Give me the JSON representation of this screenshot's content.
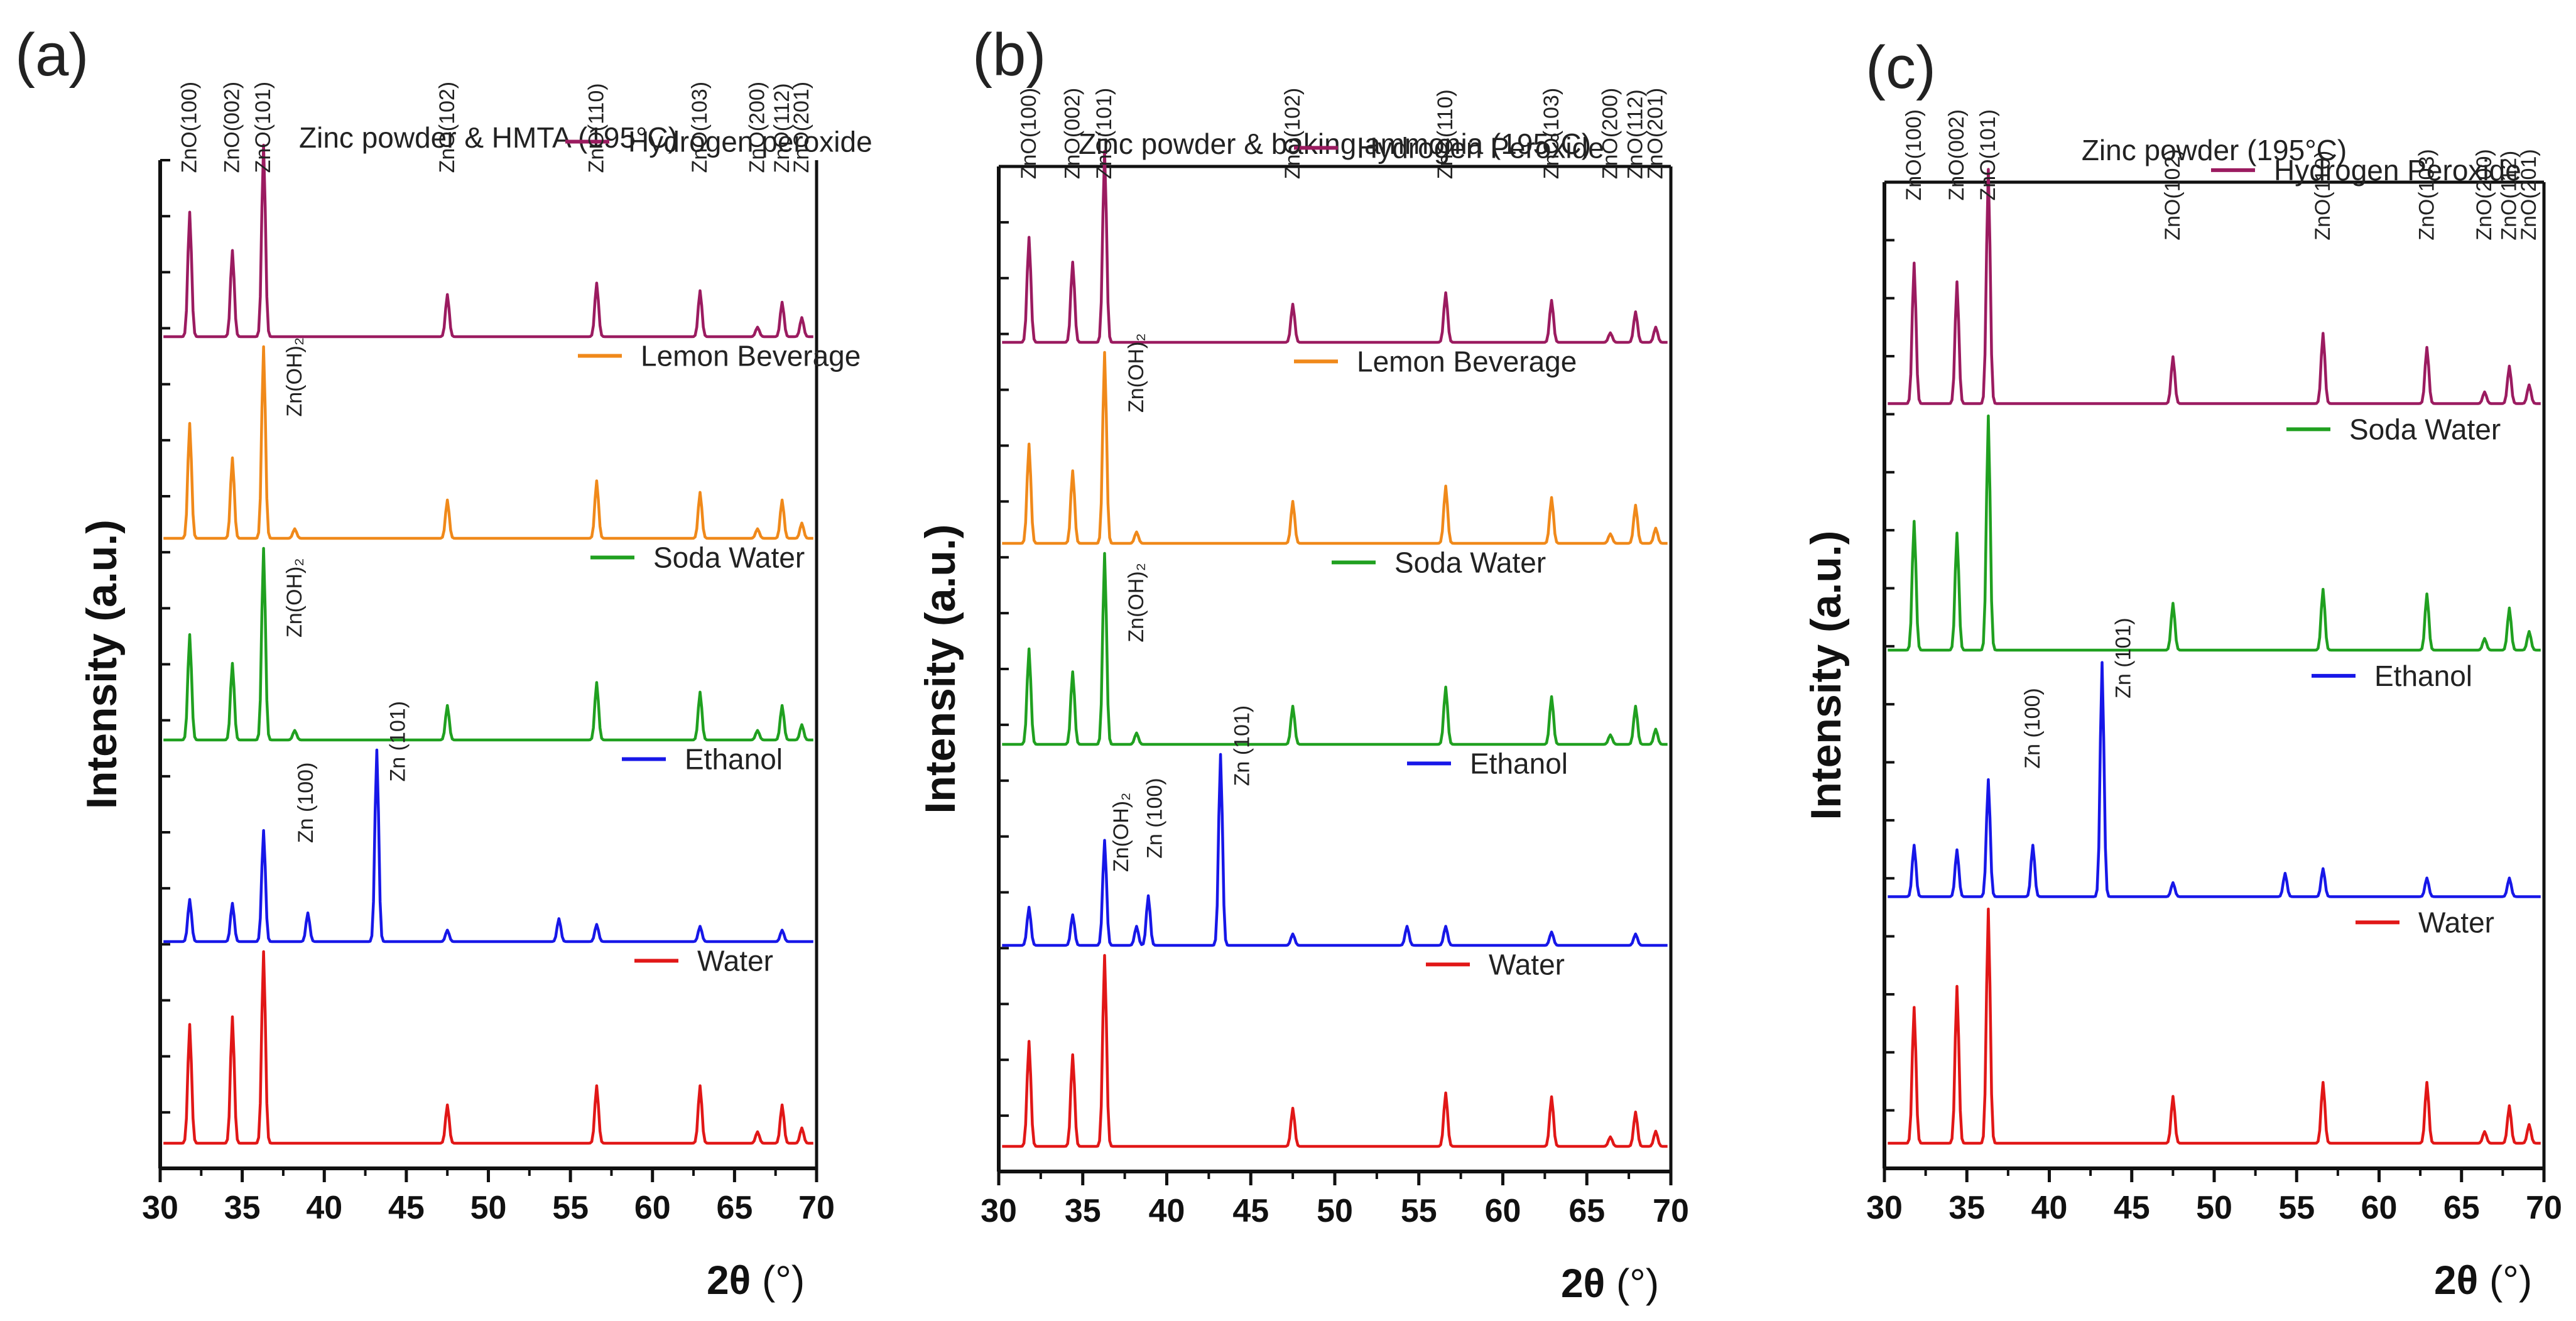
{
  "figure": {
    "theta_symbol": "2θ",
    "degree_suffix": " (°)"
  },
  "colors": {
    "hydrogen_peroxide": "#9b1b60",
    "lemon_beverage": "#f0891a",
    "soda_water": "#20a020",
    "ethanol": "#1717e8",
    "water": "#e11717"
  },
  "chart_data": [
    {
      "type": "line",
      "panel_label": "(a)",
      "title": "Zinc powder & HMTA (195°C)",
      "xlabel": "2θ (°)",
      "ylabel": "Intensity (a.u.)",
      "xlim": [
        30,
        70
      ],
      "xticks": [
        30,
        35,
        40,
        45,
        50,
        55,
        60,
        65,
        70
      ],
      "x_step_deg": 0.1,
      "series": [
        {
          "name": "Hydrogen peroxide",
          "color": "#9b1b60",
          "baseline": 4,
          "peaks": [
            [
              31.8,
              0.65
            ],
            [
              34.4,
              0.45
            ],
            [
              36.3,
              1.0
            ],
            [
              47.5,
              0.22
            ],
            [
              56.6,
              0.28
            ],
            [
              62.9,
              0.24
            ],
            [
              66.4,
              0.05
            ],
            [
              67.9,
              0.18
            ],
            [
              69.1,
              0.1
            ]
          ]
        },
        {
          "name": "Lemon Beverage",
          "color": "#f0891a",
          "baseline": 3,
          "peaks": [
            [
              31.8,
              0.6
            ],
            [
              34.4,
              0.42
            ],
            [
              36.3,
              1.0
            ],
            [
              38.2,
              0.05
            ],
            [
              47.5,
              0.2
            ],
            [
              56.6,
              0.3
            ],
            [
              62.9,
              0.24
            ],
            [
              66.4,
              0.05
            ],
            [
              67.9,
              0.2
            ],
            [
              69.1,
              0.08
            ]
          ]
        },
        {
          "name": "Soda Water",
          "color": "#20a020",
          "baseline": 2,
          "peaks": [
            [
              31.8,
              0.55
            ],
            [
              34.4,
              0.4
            ],
            [
              36.3,
              1.0
            ],
            [
              38.2,
              0.05
            ],
            [
              47.5,
              0.18
            ],
            [
              56.6,
              0.3
            ],
            [
              62.9,
              0.25
            ],
            [
              66.4,
              0.05
            ],
            [
              67.9,
              0.18
            ],
            [
              69.1,
              0.08
            ]
          ]
        },
        {
          "name": "Ethanol",
          "color": "#1717e8",
          "baseline": 1,
          "peaks": [
            [
              31.8,
              0.22
            ],
            [
              34.4,
              0.2
            ],
            [
              36.3,
              0.58
            ],
            [
              39.0,
              0.15
            ],
            [
              43.2,
              1.0
            ],
            [
              47.5,
              0.06
            ],
            [
              54.3,
              0.12
            ],
            [
              56.6,
              0.09
            ],
            [
              62.9,
              0.08
            ],
            [
              67.9,
              0.06
            ]
          ]
        },
        {
          "name": "Water",
          "color": "#e11717",
          "baseline": 0,
          "peaks": [
            [
              31.8,
              0.62
            ],
            [
              34.4,
              0.66
            ],
            [
              36.3,
              1.0
            ],
            [
              47.5,
              0.2
            ],
            [
              56.6,
              0.3
            ],
            [
              62.9,
              0.3
            ],
            [
              66.4,
              0.06
            ],
            [
              67.9,
              0.2
            ],
            [
              69.1,
              0.08
            ]
          ]
        }
      ],
      "annotations": [
        {
          "text": "ZnO(100)",
          "x": 31.9,
          "track": 4,
          "level": 0.92
        },
        {
          "text": "ZnO(002)",
          "x": 34.5,
          "track": 4,
          "level": 0.92
        },
        {
          "text": "ZnO(101)",
          "x": 36.4,
          "track": 4,
          "level": 0.92
        },
        {
          "text": "ZnO(102)",
          "x": 47.6,
          "track": 4,
          "level": 0.92
        },
        {
          "text": "ZnO(110)",
          "x": 56.7,
          "track": 4,
          "level": 0.92
        },
        {
          "text": "ZnO(103)",
          "x": 63.0,
          "track": 4,
          "level": 0.92
        },
        {
          "text": "ZnO(200)",
          "x": 66.5,
          "track": 4,
          "level": 0.92
        },
        {
          "text": "ZnO(112)",
          "x": 68.0,
          "track": 4,
          "level": 0.92
        },
        {
          "text": "ZnO(201)",
          "x": 69.2,
          "track": 4,
          "level": 0.92
        },
        {
          "text": "Zn(OH)₂",
          "x": 38.3,
          "track": 3,
          "level": 0.7
        },
        {
          "text": "Zn(OH)₂",
          "x": 38.3,
          "track": 2,
          "level": 0.6
        },
        {
          "text": "Zn (100)",
          "x": 39.0,
          "track": 1,
          "level": 0.58
        },
        {
          "text": "Zn (101)",
          "x": 44.6,
          "track": 1,
          "level": 0.9
        }
      ]
    },
    {
      "type": "line",
      "panel_label": "(b)",
      "title": "Zinc powder & baking ammonia (195°C)",
      "xlabel": "2θ (°)",
      "ylabel": "Intensity (a.u.)",
      "xlim": [
        30,
        70
      ],
      "xticks": [
        30,
        35,
        40,
        45,
        50,
        55,
        60,
        65,
        70
      ],
      "x_step_deg": 0.1,
      "series": [
        {
          "name": "Hydrogen Peroxide",
          "color": "#9b1b60",
          "baseline": 4,
          "peaks": [
            [
              31.8,
              0.55
            ],
            [
              34.4,
              0.42
            ],
            [
              36.3,
              1.0
            ],
            [
              47.5,
              0.2
            ],
            [
              56.6,
              0.26
            ],
            [
              62.9,
              0.22
            ],
            [
              66.4,
              0.05
            ],
            [
              67.9,
              0.16
            ],
            [
              69.1,
              0.08
            ]
          ]
        },
        {
          "name": "Lemon Beverage",
          "color": "#f0891a",
          "baseline": 3,
          "peaks": [
            [
              31.8,
              0.52
            ],
            [
              34.4,
              0.38
            ],
            [
              36.3,
              1.0
            ],
            [
              38.2,
              0.06
            ],
            [
              47.5,
              0.22
            ],
            [
              56.6,
              0.3
            ],
            [
              62.9,
              0.24
            ],
            [
              66.4,
              0.05
            ],
            [
              67.9,
              0.2
            ],
            [
              69.1,
              0.08
            ]
          ]
        },
        {
          "name": "Soda Water",
          "color": "#20a020",
          "baseline": 2,
          "peaks": [
            [
              31.8,
              0.5
            ],
            [
              34.4,
              0.38
            ],
            [
              36.3,
              1.0
            ],
            [
              38.2,
              0.06
            ],
            [
              47.5,
              0.2
            ],
            [
              56.6,
              0.3
            ],
            [
              62.9,
              0.25
            ],
            [
              66.4,
              0.05
            ],
            [
              67.9,
              0.2
            ],
            [
              69.1,
              0.08
            ]
          ]
        },
        {
          "name": "Ethanol",
          "color": "#1717e8",
          "baseline": 1,
          "peaks": [
            [
              31.8,
              0.2
            ],
            [
              34.4,
              0.16
            ],
            [
              36.3,
              0.55
            ],
            [
              38.2,
              0.1
            ],
            [
              38.9,
              0.26
            ],
            [
              43.2,
              1.0
            ],
            [
              47.5,
              0.06
            ],
            [
              54.3,
              0.1
            ],
            [
              56.6,
              0.1
            ],
            [
              62.9,
              0.07
            ],
            [
              67.9,
              0.06
            ]
          ]
        },
        {
          "name": "Water",
          "color": "#e11717",
          "baseline": 0,
          "peaks": [
            [
              31.8,
              0.55
            ],
            [
              34.4,
              0.48
            ],
            [
              36.3,
              1.0
            ],
            [
              47.5,
              0.2
            ],
            [
              56.6,
              0.28
            ],
            [
              62.9,
              0.26
            ],
            [
              66.4,
              0.05
            ],
            [
              67.9,
              0.18
            ],
            [
              69.1,
              0.08
            ]
          ]
        }
      ],
      "annotations": [
        {
          "text": "ZnO(100)",
          "x": 31.9,
          "track": 4,
          "level": 0.92
        },
        {
          "text": "ZnO(002)",
          "x": 34.5,
          "track": 4,
          "level": 0.92
        },
        {
          "text": "ZnO(101)",
          "x": 36.4,
          "track": 4,
          "level": 0.92
        },
        {
          "text": "ZnO(102)",
          "x": 47.6,
          "track": 4,
          "level": 0.92
        },
        {
          "text": "ZnO(110)",
          "x": 56.7,
          "track": 4,
          "level": 0.92
        },
        {
          "text": "ZnO(103)",
          "x": 63.0,
          "track": 4,
          "level": 0.92
        },
        {
          "text": "ZnO(200)",
          "x": 66.5,
          "track": 4,
          "level": 0.92
        },
        {
          "text": "ZnO(112)",
          "x": 68.0,
          "track": 4,
          "level": 0.92
        },
        {
          "text": "ZnO(201)",
          "x": 69.2,
          "track": 4,
          "level": 0.92
        },
        {
          "text": "Zn(OH)₂",
          "x": 38.3,
          "track": 3,
          "level": 0.75
        },
        {
          "text": "Zn(OH)₂",
          "x": 38.3,
          "track": 2,
          "level": 0.6
        },
        {
          "text": "Zn(OH)₂",
          "x": 37.4,
          "track": 1,
          "level": 0.45
        },
        {
          "text": "Zn (100)",
          "x": 39.4,
          "track": 1,
          "level": 0.52
        },
        {
          "text": "Zn (101)",
          "x": 44.6,
          "track": 1,
          "level": 0.9
        }
      ]
    },
    {
      "type": "line",
      "panel_label": "(c)",
      "title": "Zinc powder (195°C)",
      "xlabel": "2θ (°)",
      "ylabel": "Intensity (a.u.)",
      "xlim": [
        30,
        70
      ],
      "xticks": [
        30,
        35,
        40,
        45,
        50,
        55,
        60,
        65,
        70
      ],
      "x_step_deg": 0.1,
      "series": [
        {
          "name": "Hydrogen Peroxide",
          "color": "#9b1b60",
          "baseline": 3,
          "peaks": [
            [
              31.8,
              0.6
            ],
            [
              34.4,
              0.52
            ],
            [
              36.3,
              1.0
            ],
            [
              47.5,
              0.2
            ],
            [
              56.6,
              0.3
            ],
            [
              62.9,
              0.24
            ],
            [
              66.4,
              0.05
            ],
            [
              67.9,
              0.16
            ],
            [
              69.1,
              0.08
            ]
          ]
        },
        {
          "name": "Soda Water",
          "color": "#20a020",
          "baseline": 2,
          "peaks": [
            [
              31.8,
              0.55
            ],
            [
              34.4,
              0.5
            ],
            [
              36.3,
              1.0
            ],
            [
              47.5,
              0.2
            ],
            [
              56.6,
              0.26
            ],
            [
              62.9,
              0.24
            ],
            [
              66.4,
              0.05
            ],
            [
              67.9,
              0.18
            ],
            [
              69.1,
              0.08
            ]
          ]
        },
        {
          "name": "Ethanol",
          "color": "#1717e8",
          "baseline": 1,
          "peaks": [
            [
              31.8,
              0.22
            ],
            [
              34.4,
              0.2
            ],
            [
              36.3,
              0.5
            ],
            [
              39.0,
              0.22
            ],
            [
              43.2,
              1.0
            ],
            [
              47.5,
              0.06
            ],
            [
              54.3,
              0.1
            ],
            [
              56.6,
              0.12
            ],
            [
              62.9,
              0.08
            ],
            [
              67.9,
              0.08
            ]
          ]
        },
        {
          "name": "Water",
          "color": "#e11717",
          "baseline": 0,
          "peaks": [
            [
              31.8,
              0.58
            ],
            [
              34.4,
              0.67
            ],
            [
              36.3,
              1.0
            ],
            [
              47.5,
              0.2
            ],
            [
              56.6,
              0.26
            ],
            [
              62.9,
              0.26
            ],
            [
              66.4,
              0.05
            ],
            [
              67.9,
              0.16
            ],
            [
              69.1,
              0.08
            ]
          ]
        }
      ],
      "annotations": [
        {
          "text": "ZnO(100)",
          "x": 31.9,
          "track": 3,
          "level": 0.92
        },
        {
          "text": "ZnO(002)",
          "x": 34.5,
          "track": 3,
          "level": 0.92
        },
        {
          "text": "ZnO(101)",
          "x": 36.4,
          "track": 3,
          "level": 0.92
        },
        {
          "text": "ZnO(102)",
          "x": 47.6,
          "track": 3,
          "level": 0.75
        },
        {
          "text": "ZnO(110)",
          "x": 56.7,
          "track": 3,
          "level": 0.75
        },
        {
          "text": "ZnO(103)",
          "x": 63.0,
          "track": 3,
          "level": 0.75
        },
        {
          "text": "ZnO(200)",
          "x": 66.5,
          "track": 3,
          "level": 0.75
        },
        {
          "text": "ZnO(112)",
          "x": 68.0,
          "track": 3,
          "level": 0.75
        },
        {
          "text": "ZnO(201)",
          "x": 69.2,
          "track": 3,
          "level": 0.75
        },
        {
          "text": "Zn (100)",
          "x": 39.1,
          "track": 1,
          "level": 0.6
        },
        {
          "text": "Zn (101)",
          "x": 44.6,
          "track": 1,
          "level": 0.9
        }
      ]
    }
  ]
}
